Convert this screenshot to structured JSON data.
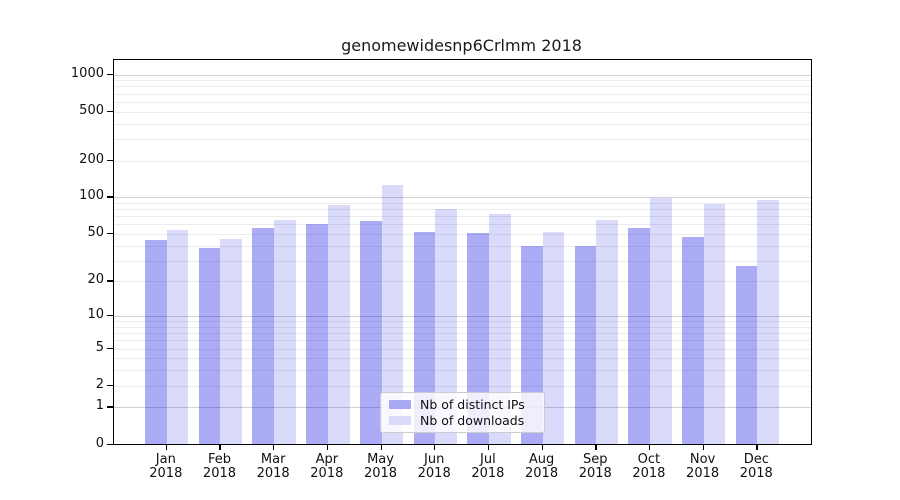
{
  "chart": {
    "title": "genomewidesnp6Crlmm 2018",
    "legend": {
      "items": [
        {
          "label": "Nb of distinct IPs",
          "series": "ips"
        },
        {
          "label": "Nb of downloads",
          "series": "downloads"
        }
      ]
    }
  },
  "colors": {
    "ips_bar": "rgba(10,10,230,0.34)",
    "downloads_bar": "rgba(10,10,230,0.15)",
    "ips_swatch": "#a8a8f4",
    "downloads_swatch": "#dadafb",
    "grid_major": "#d2d2d2",
    "grid_minor": "#ececec",
    "spine": "#000000"
  },
  "chart_data": {
    "type": "bar",
    "title": "genomewidesnp6Crlmm 2018",
    "categories": [
      "Jan",
      "Feb",
      "Mar",
      "Apr",
      "May",
      "Jun",
      "Jul",
      "Aug",
      "Sep",
      "Oct",
      "Nov",
      "Dec"
    ],
    "year_label": "2018",
    "series": [
      {
        "name": "Nb of distinct IPs",
        "values": [
          44,
          38,
          55,
          60,
          63,
          51,
          50,
          39,
          39,
          56,
          47,
          27
        ]
      },
      {
        "name": "Nb of downloads",
        "values": [
          53,
          45,
          65,
          85,
          126,
          79,
          72,
          51,
          64,
          98,
          88,
          94
        ]
      }
    ],
    "y_scale": "log1p",
    "y_ticks": [
      0,
      1,
      2,
      5,
      10,
      20,
      50,
      100,
      200,
      500,
      1000
    ],
    "y_minor_grid": [
      2,
      3,
      4,
      5,
      6,
      7,
      8,
      9,
      20,
      30,
      40,
      50,
      60,
      70,
      80,
      90,
      200,
      300,
      400,
      500,
      600,
      700,
      800,
      900
    ],
    "y_major_grid": [
      1,
      10,
      100,
      1000
    ],
    "ylim": [
      0,
      1300
    ],
    "xlabel": "",
    "ylabel": "",
    "grid": true,
    "legend_position": "inside-bottom-center"
  }
}
